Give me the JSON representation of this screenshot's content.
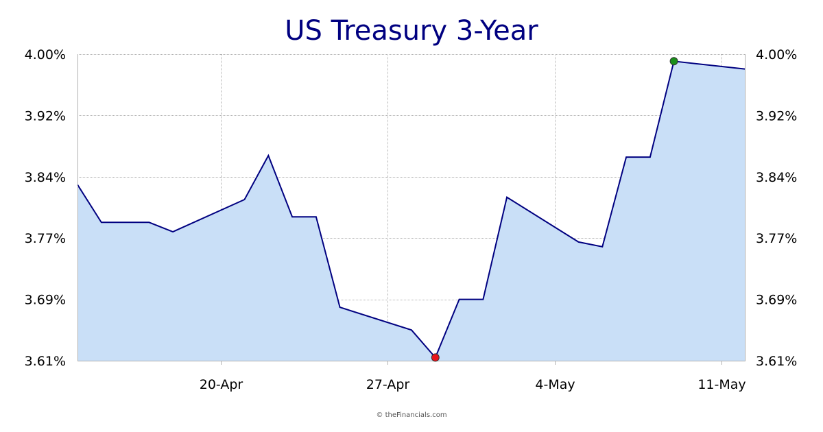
{
  "chart_data": {
    "type": "area",
    "title": "US Treasury 3-Year",
    "credit": "© theFinancials.com",
    "y_tick_labels": [
      "4.00%",
      "3.92%",
      "3.84%",
      "3.77%",
      "3.69%",
      "3.61%"
    ],
    "y_ticks": [
      4.0,
      3.922,
      3.844,
      3.766,
      3.688,
      3.61
    ],
    "ylim": [
      3.61,
      4.0
    ],
    "x_tick_labels": [
      "20-Apr",
      "27-Apr",
      "4-May",
      "11-May"
    ],
    "x_tick_dates": [
      "2023-04-20",
      "2023-04-27",
      "2023-05-04",
      "2023-05-11"
    ],
    "xlim": [
      "2023-04-14",
      "2023-05-12"
    ],
    "grid": true,
    "dual_y_axis": true,
    "series": [
      {
        "x": [
          "2023-04-14",
          "2023-04-15",
          "2023-04-16",
          "2023-04-17",
          "2023-04-18",
          "2023-04-21",
          "2023-04-22",
          "2023-04-23",
          "2023-04-24",
          "2023-04-25",
          "2023-04-28",
          "2023-04-29",
          "2023-04-30",
          "2023-05-01",
          "2023-05-02",
          "2023-05-05",
          "2023-05-06",
          "2023-05-07",
          "2023-05-08",
          "2023-05-09",
          "2023-05-12"
        ],
        "y": [
          3.834,
          3.786,
          3.786,
          3.786,
          3.774,
          3.815,
          3.871,
          3.793,
          3.793,
          3.678,
          3.649,
          3.614,
          3.688,
          3.688,
          3.818,
          3.761,
          3.755,
          3.869,
          3.869,
          3.991,
          3.981
        ]
      }
    ],
    "markers": [
      {
        "kind": "min",
        "x": "2023-04-29",
        "y": 3.614
      },
      {
        "kind": "max",
        "x": "2023-05-09",
        "y": 3.991
      }
    ],
    "colors": {
      "line": "#000080",
      "fill": "#c9dff7",
      "grid": "#b0b0b0",
      "min_marker": "#e8141b",
      "max_marker": "#1a8f1a",
      "title": "#000080"
    }
  }
}
